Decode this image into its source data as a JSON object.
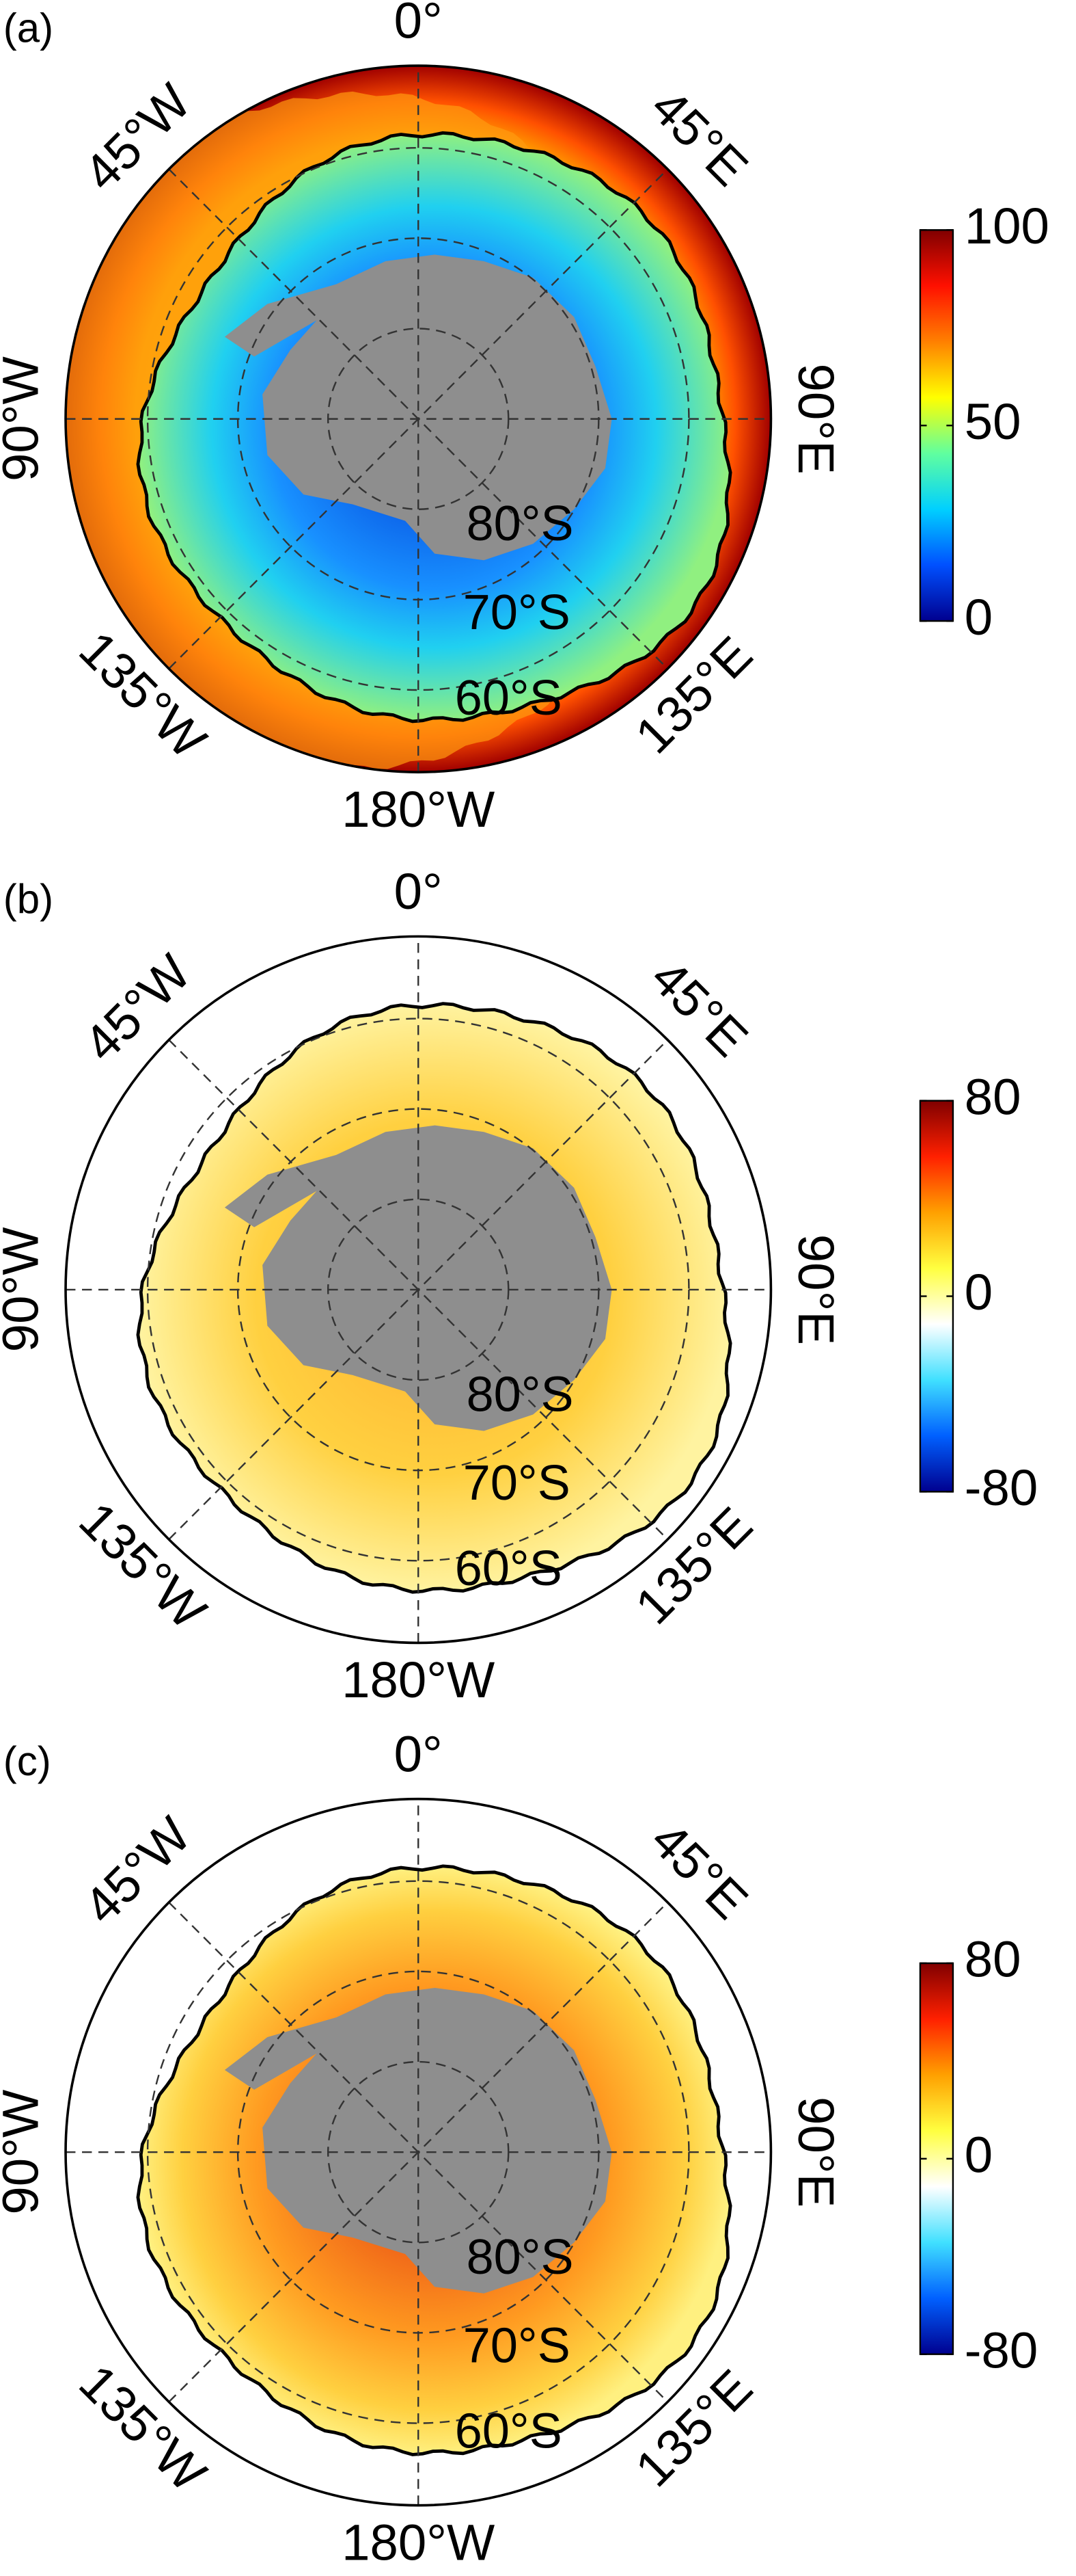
{
  "chart_data": [
    {
      "type": "polar-map",
      "panel_label": "(a)",
      "lon_labels": [
        "0°",
        "45°E",
        "90°E",
        "135°E",
        "180°W",
        "135°W",
        "90°W",
        "45°W"
      ],
      "lat_labels": [
        "80°S",
        "70°S",
        "60°S"
      ],
      "style": "concentration",
      "colormap": [
        "#00008f",
        "#0050ff",
        "#00d0ff",
        "#60ff9f",
        "#ffff00",
        "#ff8000",
        "#ff1000",
        "#800000"
      ],
      "clim": [
        0,
        100
      ],
      "cticks": [
        0,
        50,
        100
      ]
    },
    {
      "type": "polar-map",
      "panel_label": "(b)",
      "lon_labels": [
        "0°",
        "45°E",
        "90°E",
        "135°E",
        "180°W",
        "135°W",
        "90°W",
        "45°W"
      ],
      "lat_labels": [
        "80°S",
        "70°S",
        "60°S"
      ],
      "style": "anomaly-weak",
      "colormap": [
        "#00008f",
        "#0060ff",
        "#40e0ff",
        "#ffffff",
        "#ffff40",
        "#ffa000",
        "#ff2000",
        "#800000"
      ],
      "clim": [
        -80,
        80
      ],
      "cticks": [
        -80,
        0,
        80
      ]
    },
    {
      "type": "polar-map",
      "panel_label": "(c)",
      "lon_labels": [
        "0°",
        "45°E",
        "90°E",
        "135°E",
        "180°W",
        "135°W",
        "90°W",
        "45°W"
      ],
      "lat_labels": [
        "80°S",
        "70°S",
        "60°S"
      ],
      "style": "anomaly-strong",
      "colormap": [
        "#00008f",
        "#0060ff",
        "#40e0ff",
        "#ffffff",
        "#ffff40",
        "#ffa000",
        "#ff2000",
        "#800000"
      ],
      "clim": [
        -80,
        80
      ],
      "cticks": [
        -80,
        0,
        80
      ]
    }
  ]
}
